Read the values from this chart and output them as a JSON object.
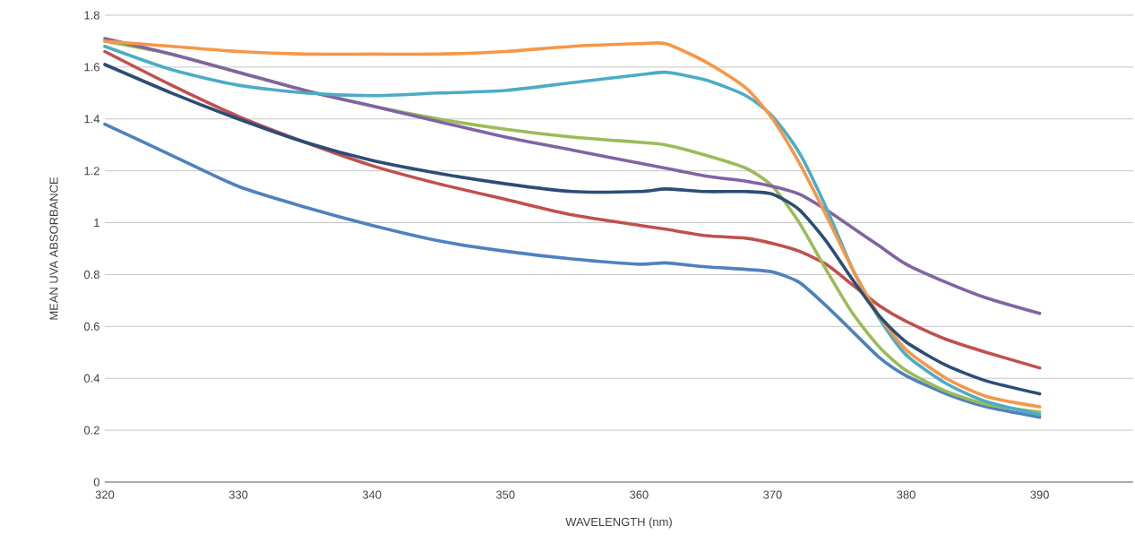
{
  "chart_data": {
    "type": "line",
    "xlabel": "WAVELENGTH (nm)",
    "ylabel": "MEAN UVA ABSORBANCE",
    "x": [
      320,
      325,
      330,
      335,
      340,
      345,
      350,
      355,
      360,
      362,
      365,
      368,
      370,
      372,
      374,
      376,
      378,
      380,
      383,
      386,
      390
    ],
    "xlim": [
      320,
      397
    ],
    "xticks": [
      320,
      330,
      340,
      350,
      360,
      370,
      380,
      390
    ],
    "ylim": [
      0,
      1.8
    ],
    "yticks": [
      0,
      0.2,
      0.4,
      0.6,
      0.8,
      1,
      1.2,
      1.4,
      1.6,
      1.8
    ],
    "grid": "y",
    "marker": "none",
    "line_style": "solid",
    "series": [
      {
        "color": "#4f81bd",
        "values": [
          1.38,
          1.26,
          1.14,
          1.06,
          0.99,
          0.93,
          0.89,
          0.86,
          0.84,
          0.845,
          0.83,
          0.82,
          0.81,
          0.77,
          0.68,
          0.58,
          0.48,
          0.41,
          0.34,
          0.29,
          0.25
        ]
      },
      {
        "color": "#c0504d",
        "values": [
          1.66,
          1.53,
          1.41,
          1.31,
          1.22,
          1.15,
          1.09,
          1.03,
          0.99,
          0.975,
          0.95,
          0.94,
          0.92,
          0.89,
          0.84,
          0.76,
          0.68,
          0.62,
          0.55,
          0.5,
          0.44
        ]
      },
      {
        "color": "#9bbb59",
        "values": [
          1.7,
          1.65,
          1.58,
          1.51,
          1.45,
          1.4,
          1.36,
          1.33,
          1.31,
          1.3,
          1.26,
          1.21,
          1.14,
          1.0,
          0.82,
          0.65,
          0.52,
          0.43,
          0.35,
          0.3,
          0.27
        ]
      },
      {
        "color": "#8064a2",
        "values": [
          1.71,
          1.65,
          1.58,
          1.51,
          1.45,
          1.39,
          1.33,
          1.28,
          1.23,
          1.21,
          1.18,
          1.16,
          1.14,
          1.11,
          1.05,
          0.98,
          0.91,
          0.84,
          0.77,
          0.71,
          0.65
        ]
      },
      {
        "color": "#4bacc6",
        "values": [
          1.68,
          1.59,
          1.53,
          1.5,
          1.49,
          1.5,
          1.51,
          1.54,
          1.57,
          1.58,
          1.55,
          1.49,
          1.41,
          1.27,
          1.06,
          0.82,
          0.63,
          0.49,
          0.38,
          0.31,
          0.26
        ]
      },
      {
        "color": "#f79646",
        "values": [
          1.7,
          1.68,
          1.66,
          1.65,
          1.65,
          1.65,
          1.66,
          1.68,
          1.69,
          1.69,
          1.62,
          1.52,
          1.4,
          1.23,
          1.03,
          0.82,
          0.64,
          0.51,
          0.4,
          0.33,
          0.29
        ]
      },
      {
        "color": "#2c4d75",
        "values": [
          1.61,
          1.5,
          1.4,
          1.31,
          1.24,
          1.19,
          1.15,
          1.12,
          1.12,
          1.13,
          1.12,
          1.12,
          1.11,
          1.05,
          0.93,
          0.78,
          0.64,
          0.54,
          0.45,
          0.39,
          0.34
        ]
      }
    ]
  }
}
